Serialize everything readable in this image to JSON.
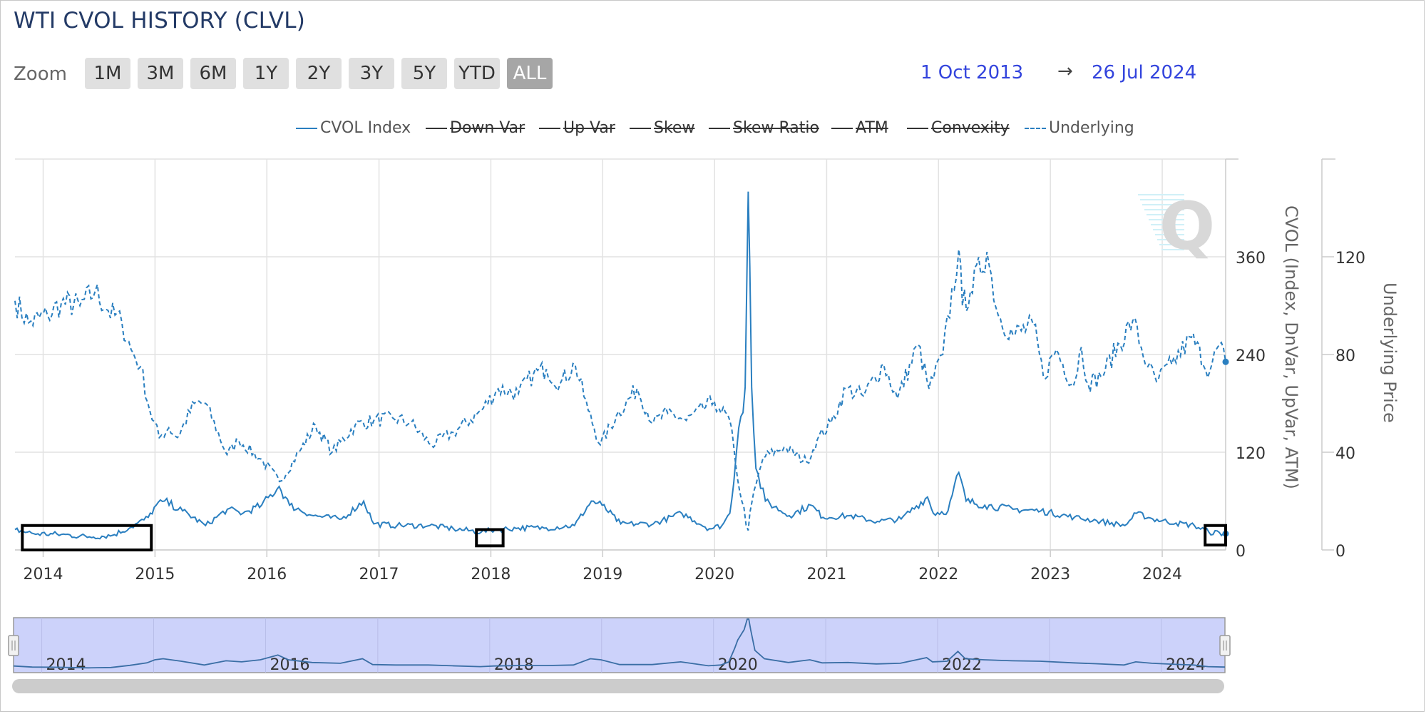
{
  "title": "WTI CVOL HISTORY (CLVL)",
  "zoom": {
    "label": "Zoom",
    "buttons": [
      "1M",
      "3M",
      "6M",
      "1Y",
      "2Y",
      "3Y",
      "5Y",
      "YTD",
      "ALL"
    ],
    "active": "ALL"
  },
  "range": {
    "from": "1 Oct 2013",
    "arrow": "→",
    "to": "26 Jul 2024"
  },
  "colors": {
    "series": "#2a7fc0",
    "navigator_fill": "#ccd2fa",
    "highlight_box": "#000000"
  },
  "legend": [
    {
      "name": "CVOL Index",
      "visible": true,
      "dashed": false
    },
    {
      "name": "Down Var",
      "visible": false,
      "dashed": false
    },
    {
      "name": "Up Var",
      "visible": false,
      "dashed": false
    },
    {
      "name": "Skew",
      "visible": false,
      "dashed": false
    },
    {
      "name": "Skew Ratio",
      "visible": false,
      "dashed": false
    },
    {
      "name": "ATM",
      "visible": false,
      "dashed": false
    },
    {
      "name": "Convexity",
      "visible": false,
      "dashed": false
    },
    {
      "name": "Underlying",
      "visible": true,
      "dashed": true
    }
  ],
  "chart_data": {
    "type": "line",
    "x_type": "datetime",
    "x_range": [
      "2013-10-01",
      "2024-07-26"
    ],
    "x_ticks": [
      "2014",
      "2015",
      "2016",
      "2017",
      "2018",
      "2019",
      "2020",
      "2021",
      "2022",
      "2023",
      "2024"
    ],
    "y_left": {
      "label": "CVOL (Index, DnVar, UpVar, ATM)",
      "ticks": [
        "0",
        "120",
        "240",
        "360"
      ],
      "range": [
        0,
        480
      ]
    },
    "y_right": {
      "label": "Underlying Price",
      "ticks": [
        "0",
        "40",
        "80",
        "120"
      ],
      "range": [
        0,
        160
      ]
    },
    "grid": true,
    "legend_position": "top-center",
    "series": [
      {
        "name": "CVOL Index",
        "axis": "left",
        "dashed": false,
        "points": [
          [
            "2013-10-01",
            25
          ],
          [
            "2013-12-01",
            20
          ],
          [
            "2014-03-01",
            19
          ],
          [
            "2014-06-01",
            16
          ],
          [
            "2014-08-15",
            18
          ],
          [
            "2014-10-15",
            28
          ],
          [
            "2014-12-10",
            40
          ],
          [
            "2015-01-05",
            55
          ],
          [
            "2015-02-01",
            60
          ],
          [
            "2015-04-01",
            48
          ],
          [
            "2015-06-15",
            30
          ],
          [
            "2015-08-25",
            50
          ],
          [
            "2015-10-15",
            45
          ],
          [
            "2015-12-15",
            55
          ],
          [
            "2016-02-10",
            78
          ],
          [
            "2016-03-15",
            55
          ],
          [
            "2016-06-01",
            42
          ],
          [
            "2016-09-01",
            38
          ],
          [
            "2016-11-12",
            60
          ],
          [
            "2016-12-15",
            32
          ],
          [
            "2017-03-01",
            30
          ],
          [
            "2017-06-15",
            30
          ],
          [
            "2017-09-01",
            26
          ],
          [
            "2017-12-01",
            22
          ],
          [
            "2018-01-15",
            25
          ],
          [
            "2018-04-01",
            27
          ],
          [
            "2018-07-01",
            27
          ],
          [
            "2018-10-01",
            30
          ],
          [
            "2018-11-25",
            60
          ],
          [
            "2018-12-30",
            55
          ],
          [
            "2019-03-01",
            32
          ],
          [
            "2019-06-15",
            32
          ],
          [
            "2019-09-16",
            45
          ],
          [
            "2019-12-15",
            26
          ],
          [
            "2020-01-25",
            30
          ],
          [
            "2020-02-20",
            45
          ],
          [
            "2020-03-10",
            110
          ],
          [
            "2020-03-20",
            150
          ],
          [
            "2020-04-10",
            200
          ],
          [
            "2020-04-20",
            440
          ],
          [
            "2020-04-25",
            350
          ],
          [
            "2020-05-01",
            200
          ],
          [
            "2020-05-15",
            100
          ],
          [
            "2020-06-15",
            60
          ],
          [
            "2020-09-01",
            42
          ],
          [
            "2020-11-10",
            55
          ],
          [
            "2020-12-20",
            40
          ],
          [
            "2021-03-15",
            42
          ],
          [
            "2021-06-15",
            35
          ],
          [
            "2021-09-01",
            38
          ],
          [
            "2021-11-26",
            65
          ],
          [
            "2021-12-15",
            45
          ],
          [
            "2022-02-01",
            48
          ],
          [
            "2022-03-08",
            95
          ],
          [
            "2022-04-01",
            60
          ],
          [
            "2022-06-01",
            55
          ],
          [
            "2022-09-01",
            50
          ],
          [
            "2022-12-01",
            48
          ],
          [
            "2023-03-20",
            40
          ],
          [
            "2023-06-01",
            36
          ],
          [
            "2023-09-01",
            30
          ],
          [
            "2023-10-09",
            45
          ],
          [
            "2023-12-01",
            38
          ],
          [
            "2024-02-15",
            33
          ],
          [
            "2024-04-15",
            30
          ],
          [
            "2024-06-01",
            22
          ],
          [
            "2024-07-26",
            20
          ]
        ]
      },
      {
        "name": "Underlying",
        "axis": "right",
        "dashed": true,
        "points": [
          [
            "2013-10-01",
            102
          ],
          [
            "2013-11-15",
            93
          ],
          [
            "2014-01-15",
            96
          ],
          [
            "2014-03-01",
            101
          ],
          [
            "2014-05-01",
            100
          ],
          [
            "2014-06-20",
            106
          ],
          [
            "2014-08-01",
            98
          ],
          [
            "2014-09-15",
            93
          ],
          [
            "2014-10-15",
            82
          ],
          [
            "2014-11-15",
            75
          ],
          [
            "2014-12-15",
            57
          ],
          [
            "2015-01-15",
            46
          ],
          [
            "2015-02-15",
            50
          ],
          [
            "2015-03-15",
            46
          ],
          [
            "2015-05-10",
            60
          ],
          [
            "2015-06-15",
            60
          ],
          [
            "2015-08-24",
            39
          ],
          [
            "2015-10-01",
            45
          ],
          [
            "2015-12-20",
            36
          ],
          [
            "2016-02-11",
            28
          ],
          [
            "2016-04-15",
            40
          ],
          [
            "2016-06-08",
            51
          ],
          [
            "2016-08-01",
            40
          ],
          [
            "2016-10-15",
            51
          ],
          [
            "2016-12-15",
            53
          ],
          [
            "2017-02-15",
            54
          ],
          [
            "2017-04-15",
            52
          ],
          [
            "2017-06-20",
            43
          ],
          [
            "2017-09-01",
            48
          ],
          [
            "2017-12-01",
            57
          ],
          [
            "2018-01-25",
            66
          ],
          [
            "2018-04-01",
            64
          ],
          [
            "2018-05-20",
            72
          ],
          [
            "2018-07-01",
            74
          ],
          [
            "2018-08-15",
            68
          ],
          [
            "2018-10-03",
            76
          ],
          [
            "2018-11-15",
            57
          ],
          [
            "2018-12-24",
            43
          ],
          [
            "2019-02-15",
            55
          ],
          [
            "2019-04-23",
            66
          ],
          [
            "2019-06-15",
            52
          ],
          [
            "2019-08-01",
            56
          ],
          [
            "2019-10-01",
            53
          ],
          [
            "2019-12-31",
            61
          ],
          [
            "2020-01-15",
            58
          ],
          [
            "2020-02-20",
            53
          ],
          [
            "2020-03-10",
            35
          ],
          [
            "2020-03-30",
            20
          ],
          [
            "2020-04-20",
            8
          ],
          [
            "2020-05-01",
            19
          ],
          [
            "2020-06-08",
            38
          ],
          [
            "2020-08-15",
            42
          ],
          [
            "2020-10-28",
            36
          ],
          [
            "2020-12-01",
            45
          ],
          [
            "2021-01-15",
            52
          ],
          [
            "2021-03-05",
            66
          ],
          [
            "2021-05-01",
            63
          ],
          [
            "2021-07-06",
            76
          ],
          [
            "2021-08-20",
            62
          ],
          [
            "2021-10-26",
            84
          ],
          [
            "2021-12-01",
            66
          ],
          [
            "2022-01-15",
            80
          ],
          [
            "2022-03-08",
            123
          ],
          [
            "2022-03-20",
            100
          ],
          [
            "2022-04-15",
            106
          ],
          [
            "2022-06-08",
            122
          ],
          [
            "2022-07-15",
            96
          ],
          [
            "2022-09-01",
            88
          ],
          [
            "2022-11-07",
            92
          ],
          [
            "2022-12-09",
            71
          ],
          [
            "2023-01-20",
            82
          ],
          [
            "2023-03-17",
            67
          ],
          [
            "2023-04-12",
            83
          ],
          [
            "2023-05-04",
            68
          ],
          [
            "2023-06-15",
            71
          ],
          [
            "2023-09-27",
            94
          ],
          [
            "2023-11-15",
            75
          ],
          [
            "2023-12-13",
            69
          ],
          [
            "2024-02-01",
            76
          ],
          [
            "2024-04-05",
            87
          ],
          [
            "2024-06-04",
            73
          ],
          [
            "2024-07-05",
            84
          ],
          [
            "2024-07-26",
            77
          ]
        ]
      }
    ],
    "highlights": [
      {
        "from": "2013-10-25",
        "to": "2014-12-20",
        "y_low": 0,
        "y_high": 30
      },
      {
        "from": "2017-11-15",
        "to": "2018-02-10",
        "y_low": 5,
        "y_high": 25
      },
      {
        "from": "2024-05-20",
        "to": "2024-07-26",
        "y_low": 6,
        "y_high": 30
      }
    ],
    "navigator": {
      "x_labels": [
        "2014",
        "2016",
        "2018",
        "2020",
        "2022",
        "2024"
      ]
    }
  }
}
